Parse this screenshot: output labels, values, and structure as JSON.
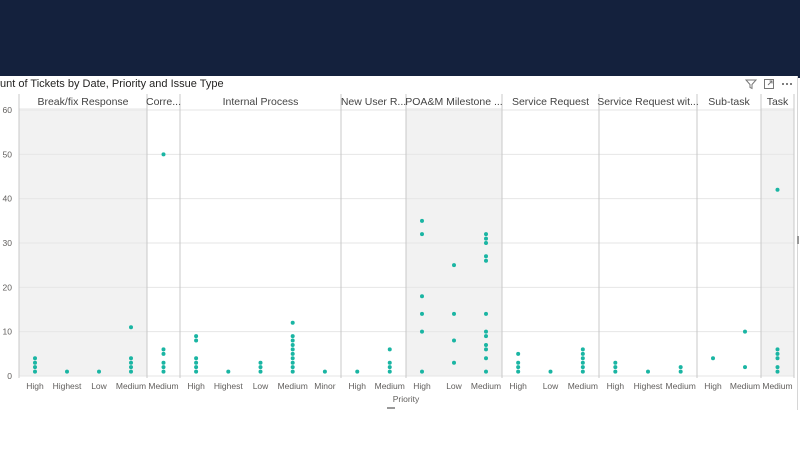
{
  "visual": {
    "title": "unt of Tickets by Date, Priority and Issue Type",
    "icons": {
      "filter": "filter-icon",
      "focus": "focus-mode-icon",
      "more": "more-options-icon"
    }
  },
  "chart_data": {
    "type": "scatter",
    "title": "unt of Tickets by Date, Priority and Issue Type",
    "xlabel": "Priority",
    "ylabel": "",
    "ylim": [
      0,
      60
    ],
    "yticks": [
      0,
      10,
      20,
      30,
      40,
      50,
      60
    ],
    "grid": true,
    "point_color": "#1ab5a3",
    "panels": [
      {
        "name": "Break/fix Response",
        "categories": [
          "High",
          "Highest",
          "Low",
          "Medium"
        ],
        "points": [
          [
            "High",
            1
          ],
          [
            "High",
            2
          ],
          [
            "High",
            3
          ],
          [
            "High",
            4
          ],
          [
            "Highest",
            1
          ],
          [
            "Low",
            1
          ],
          [
            "Medium",
            1
          ],
          [
            "Medium",
            2
          ],
          [
            "Medium",
            3
          ],
          [
            "Medium",
            4
          ],
          [
            "Medium",
            11
          ]
        ]
      },
      {
        "name": "Corre...",
        "categories": [
          "Medium"
        ],
        "points": [
          [
            "Medium",
            1
          ],
          [
            "Medium",
            2
          ],
          [
            "Medium",
            3
          ],
          [
            "Medium",
            5
          ],
          [
            "Medium",
            6
          ],
          [
            "Medium",
            50
          ]
        ]
      },
      {
        "name": "Internal Process",
        "categories": [
          "High",
          "Highest",
          "Low",
          "Medium",
          "Minor"
        ],
        "points": [
          [
            "High",
            1
          ],
          [
            "High",
            2
          ],
          [
            "High",
            3
          ],
          [
            "High",
            4
          ],
          [
            "High",
            8
          ],
          [
            "High",
            9
          ],
          [
            "Highest",
            1
          ],
          [
            "Low",
            1
          ],
          [
            "Low",
            2
          ],
          [
            "Low",
            3
          ],
          [
            "Medium",
            1
          ],
          [
            "Medium",
            2
          ],
          [
            "Medium",
            3
          ],
          [
            "Medium",
            4
          ],
          [
            "Medium",
            5
          ],
          [
            "Medium",
            6
          ],
          [
            "Medium",
            7
          ],
          [
            "Medium",
            8
          ],
          [
            "Medium",
            9
          ],
          [
            "Medium",
            12
          ],
          [
            "Minor",
            1
          ]
        ]
      },
      {
        "name": "New User R...",
        "categories": [
          "High",
          "Medium"
        ],
        "points": [
          [
            "High",
            1
          ],
          [
            "Medium",
            1
          ],
          [
            "Medium",
            2
          ],
          [
            "Medium",
            3
          ],
          [
            "Medium",
            6
          ]
        ]
      },
      {
        "name": "POA&M Milestone ...",
        "categories": [
          "High",
          "Low",
          "Medium"
        ],
        "points": [
          [
            "High",
            1
          ],
          [
            "High",
            10
          ],
          [
            "High",
            14
          ],
          [
            "High",
            18
          ],
          [
            "High",
            32
          ],
          [
            "High",
            35
          ],
          [
            "Low",
            3
          ],
          [
            "Low",
            8
          ],
          [
            "Low",
            14
          ],
          [
            "Low",
            25
          ],
          [
            "Medium",
            1
          ],
          [
            "Medium",
            4
          ],
          [
            "Medium",
            6
          ],
          [
            "Medium",
            7
          ],
          [
            "Medium",
            9
          ],
          [
            "Medium",
            10
          ],
          [
            "Medium",
            14
          ],
          [
            "Medium",
            26
          ],
          [
            "Medium",
            27
          ],
          [
            "Medium",
            30
          ],
          [
            "Medium",
            31
          ],
          [
            "Medium",
            32
          ]
        ]
      },
      {
        "name": "Service Request",
        "categories": [
          "High",
          "Low",
          "Medium"
        ],
        "points": [
          [
            "High",
            1
          ],
          [
            "High",
            2
          ],
          [
            "High",
            3
          ],
          [
            "High",
            5
          ],
          [
            "Low",
            1
          ],
          [
            "Medium",
            1
          ],
          [
            "Medium",
            2
          ],
          [
            "Medium",
            3
          ],
          [
            "Medium",
            4
          ],
          [
            "Medium",
            5
          ],
          [
            "Medium",
            6
          ]
        ]
      },
      {
        "name": "Service Request wit...",
        "categories": [
          "High",
          "Highest",
          "Medium"
        ],
        "points": [
          [
            "High",
            1
          ],
          [
            "High",
            2
          ],
          [
            "High",
            3
          ],
          [
            "Highest",
            1
          ],
          [
            "Medium",
            1
          ],
          [
            "Medium",
            2
          ]
        ]
      },
      {
        "name": "Sub-task",
        "categories": [
          "High",
          "Medium"
        ],
        "points": [
          [
            "High",
            4
          ],
          [
            "Medium",
            2
          ],
          [
            "Medium",
            10
          ]
        ]
      },
      {
        "name": "Task",
        "categories": [
          "Medium"
        ],
        "points": [
          [
            "Medium",
            1
          ],
          [
            "Medium",
            2
          ],
          [
            "Medium",
            4
          ],
          [
            "Medium",
            5
          ],
          [
            "Medium",
            6
          ],
          [
            "Medium",
            42
          ]
        ]
      }
    ]
  }
}
